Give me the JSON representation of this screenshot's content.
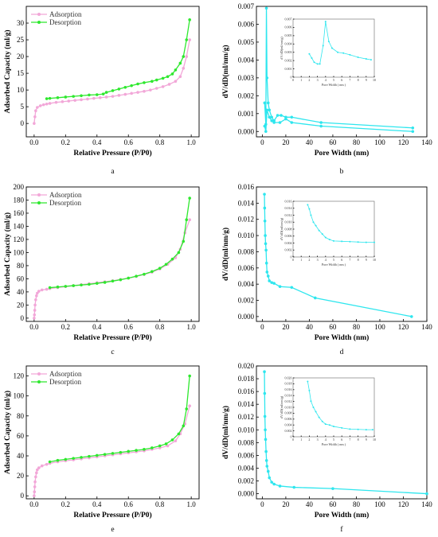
{
  "colors": {
    "adsorption": "#f2a7d8",
    "desorption": "#2ee82e",
    "pore": "#2ee6ee"
  },
  "chart_data": [
    {
      "id": "a",
      "type": "line",
      "panel_label": "a",
      "xlabel": "Relative Pressure (P/P0)",
      "ylabel": "Adsorbed Capacity (ml/g)",
      "xlim": [
        -0.05,
        1.05
      ],
      "ylim": [
        -4,
        35
      ],
      "xticks": [
        0.0,
        0.2,
        0.4,
        0.6,
        0.8,
        1.0
      ],
      "xtick_labels": [
        "0.0",
        "0.2",
        "0.4",
        "0.6",
        "0.8",
        "1.0"
      ],
      "yticks": [
        0,
        5,
        10,
        15,
        20,
        25,
        30
      ],
      "ytick_labels": [
        "0",
        "5",
        "10",
        "15",
        "20",
        "25",
        "30"
      ],
      "legend": "top-left",
      "series": [
        {
          "name": "Adsorption",
          "color_key": "adsorption",
          "x": [
            0.0,
            0.005,
            0.01,
            0.02,
            0.04,
            0.06,
            0.08,
            0.1,
            0.14,
            0.18,
            0.22,
            0.26,
            0.3,
            0.34,
            0.38,
            0.42,
            0.46,
            0.5,
            0.54,
            0.58,
            0.62,
            0.66,
            0.7,
            0.74,
            0.78,
            0.82,
            0.86,
            0.9,
            0.93,
            0.95,
            0.97,
            0.99
          ],
          "y": [
            0.0,
            2.0,
            3.8,
            4.8,
            5.3,
            5.6,
            5.8,
            6.0,
            6.3,
            6.5,
            6.7,
            6.9,
            7.1,
            7.3,
            7.5,
            7.7,
            7.9,
            8.1,
            8.4,
            8.7,
            9.0,
            9.3,
            9.6,
            10.0,
            10.5,
            11.0,
            11.7,
            12.6,
            14.0,
            16.5,
            20.0,
            25.0
          ]
        },
        {
          "name": "Desorption",
          "color_key": "desorption",
          "x": [
            0.99,
            0.97,
            0.95,
            0.93,
            0.9,
            0.88,
            0.85,
            0.82,
            0.78,
            0.75,
            0.7,
            0.66,
            0.62,
            0.58,
            0.54,
            0.5,
            0.46,
            0.44,
            0.4,
            0.35,
            0.3,
            0.25,
            0.2,
            0.15,
            0.1,
            0.08
          ],
          "y": [
            31.0,
            25.0,
            20.0,
            18.0,
            16.0,
            14.8,
            14.0,
            13.5,
            13.0,
            12.6,
            12.2,
            11.8,
            11.3,
            10.8,
            10.3,
            9.8,
            9.3,
            8.8,
            8.6,
            8.5,
            8.3,
            8.1,
            7.9,
            7.7,
            7.5,
            7.4
          ]
        }
      ]
    },
    {
      "id": "b",
      "type": "line",
      "panel_label": "b",
      "xlabel": "Pore Width (nm)",
      "ylabel": "dV/dD(ml/nm/g)",
      "xlim": [
        -5,
        140
      ],
      "ylim": [
        -0.0003,
        0.007
      ],
      "xticks": [
        0,
        20,
        40,
        60,
        80,
        100,
        120,
        140
      ],
      "xtick_labels": [
        "0",
        "20",
        "40",
        "60",
        "80",
        "100",
        "120",
        "140"
      ],
      "yticks": [
        0,
        0.001,
        0.002,
        0.003,
        0.004,
        0.005,
        0.006,
        0.007
      ],
      "ytick_labels": [
        "0.000",
        "0.001",
        "0.002",
        "0.003",
        "0.004",
        "0.005",
        "0.006",
        "0.007"
      ],
      "series": [
        {
          "name": "",
          "color_key": "pore",
          "x": [
            2,
            3,
            3.5,
            4,
            5,
            6,
            8,
            10,
            13,
            16,
            20,
            25,
            50,
            128
          ],
          "y": [
            0.0016,
            0.0004,
            0.0069,
            0.003,
            0.0016,
            0.0012,
            0.0008,
            0.0006,
            0.0009,
            0.0009,
            0.0008,
            0.0008,
            0.0005,
            0.0002
          ]
        },
        {
          "name": "",
          "color_key": "pore",
          "x": [
            2,
            3,
            4,
            6,
            8,
            10,
            15,
            20,
            25,
            50,
            128
          ],
          "y": [
            0.0003,
            0.0,
            0.0012,
            0.0008,
            0.0006,
            0.0005,
            0.0005,
            0.0007,
            0.0005,
            0.0003,
            0.0
          ]
        }
      ],
      "inset": {
        "xlabel": "Pore Width ( nm )",
        "ylabel": "dV/dD(ml/nm/g)",
        "xlim": [
          0,
          10
        ],
        "ylim": [
          0,
          0.007
        ],
        "xticks": [
          0,
          1,
          2,
          3,
          4,
          5,
          6,
          7,
          8,
          9,
          10
        ],
        "xtick_labels": [
          "0",
          "1",
          "2",
          "3",
          "4",
          "5",
          "6",
          "7",
          "8",
          "9",
          "10"
        ],
        "yticks": [
          0,
          0.001,
          0.002,
          0.003,
          0.004,
          0.005,
          0.006,
          0.007
        ],
        "ytick_labels": [
          "0",
          "0.001",
          "0.002",
          "0.003",
          "0.004",
          "0.005",
          "0.006",
          "0.007"
        ],
        "series": [
          {
            "color_key": "pore",
            "x": [
              2.0,
              2.3,
              2.6,
              3.0,
              3.3,
              3.7,
              4.0,
              4.4,
              4.8,
              5.5,
              6.2,
              7.0,
              8.0,
              9.0,
              9.6
            ],
            "y": [
              0.0028,
              0.0023,
              0.0018,
              0.0016,
              0.0016,
              0.0038,
              0.0067,
              0.0043,
              0.0035,
              0.003,
              0.0029,
              0.0027,
              0.0024,
              0.0022,
              0.0021
            ]
          }
        ]
      }
    },
    {
      "id": "c",
      "type": "line",
      "panel_label": "c",
      "xlabel": "Relative Pressure (P/P0)",
      "ylabel": "Adsorbed Capacity (ml/g)",
      "xlim": [
        -0.05,
        1.05
      ],
      "ylim": [
        -5,
        200
      ],
      "xticks": [
        0.0,
        0.2,
        0.4,
        0.6,
        0.8,
        1.0
      ],
      "xtick_labels": [
        "0.0",
        "0.2",
        "0.4",
        "0.6",
        "0.8",
        "1.0"
      ],
      "yticks": [
        0,
        20,
        40,
        60,
        80,
        100,
        120,
        140,
        160,
        180,
        200
      ],
      "ytick_labels": [
        "0",
        "20",
        "40",
        "60",
        "80",
        "100",
        "120",
        "140",
        "160",
        "180",
        "200"
      ],
      "legend": "top-left",
      "series": [
        {
          "name": "Adsorption",
          "color_key": "adsorption",
          "x": [
            0.0,
            0.002,
            0.004,
            0.006,
            0.01,
            0.015,
            0.02,
            0.03,
            0.05,
            0.08,
            0.1,
            0.15,
            0.2,
            0.25,
            0.3,
            0.35,
            0.4,
            0.45,
            0.5,
            0.55,
            0.6,
            0.65,
            0.7,
            0.75,
            0.8,
            0.85,
            0.9,
            0.93,
            0.96,
            0.99
          ],
          "y": [
            0,
            5,
            12,
            20,
            28,
            34,
            38,
            41,
            43,
            44,
            45,
            46.5,
            48,
            49.5,
            51,
            52.5,
            54,
            55.5,
            57,
            59,
            61,
            63.5,
            66.5,
            70,
            75,
            82,
            92,
            105,
            130,
            150
          ]
        },
        {
          "name": "Desorption",
          "color_key": "desorption",
          "x": [
            0.99,
            0.97,
            0.95,
            0.92,
            0.88,
            0.84,
            0.8,
            0.75,
            0.7,
            0.65,
            0.6,
            0.55,
            0.5,
            0.45,
            0.4,
            0.35,
            0.3,
            0.25,
            0.2,
            0.15,
            0.1
          ],
          "y": [
            183,
            150,
            117,
            100,
            90,
            82,
            76,
            71,
            67,
            64,
            61,
            58.5,
            56.5,
            54.5,
            53,
            51.5,
            50.5,
            49.5,
            48.5,
            47.5,
            46.5
          ]
        }
      ]
    },
    {
      "id": "d",
      "type": "line",
      "panel_label": "d",
      "xlabel": "Pore Width (nm)",
      "ylabel": "dV/dD(ml/nm/g)",
      "xlim": [
        -5,
        140
      ],
      "ylim": [
        -0.0006,
        0.016
      ],
      "xticks": [
        0,
        20,
        40,
        60,
        80,
        100,
        120,
        140
      ],
      "xtick_labels": [
        "0",
        "20",
        "40",
        "60",
        "80",
        "100",
        "120",
        "140"
      ],
      "yticks": [
        0,
        0.002,
        0.004,
        0.006,
        0.008,
        0.01,
        0.012,
        0.014,
        0.016
      ],
      "ytick_labels": [
        "0.000",
        "0.002",
        "0.004",
        "0.006",
        "0.008",
        "0.010",
        "0.012",
        "0.014",
        "0.016"
      ],
      "series": [
        {
          "name": "",
          "color_key": "pore",
          "x": [
            1.8,
            2.0,
            2.2,
            2.5,
            2.8,
            3.2,
            3.6,
            4.0,
            5.0,
            6.0,
            8.0,
            10,
            15,
            25,
            45,
            127
          ],
          "y": [
            0.0151,
            0.0134,
            0.0118,
            0.01,
            0.009,
            0.0082,
            0.0066,
            0.0055,
            0.005,
            0.0044,
            0.0042,
            0.0041,
            0.0037,
            0.0036,
            0.0023,
            0.0
          ]
        }
      ],
      "inset": {
        "xlabel": "Pore Width ( nm )",
        "ylabel": "dV/dD(ml/nm/g)",
        "xlim": [
          0,
          10
        ],
        "ylim": [
          0,
          0.016
        ],
        "xticks": [
          0,
          1,
          2,
          3,
          4,
          5,
          6,
          7,
          8,
          9,
          10
        ],
        "xtick_labels": [
          "0",
          "1",
          "2",
          "3",
          "4",
          "5",
          "6",
          "7",
          "8",
          "9",
          "10"
        ],
        "yticks": [
          0,
          0.002,
          0.004,
          0.006,
          0.008,
          0.01,
          0.012,
          0.014,
          0.016
        ],
        "ytick_labels": [
          "0",
          "0.002",
          "0.004",
          "0.006",
          "0.008",
          "0.010",
          "0.012",
          "0.014",
          "0.016"
        ],
        "series": [
          {
            "color_key": "pore",
            "x": [
              1.8,
              2.0,
              2.2,
              2.5,
              2.8,
              3.2,
              3.6,
              4.0,
              4.5,
              5.0,
              6.0,
              7.0,
              8.0,
              9.0,
              10.0
            ],
            "y": [
              0.015,
              0.0138,
              0.012,
              0.01,
              0.009,
              0.0076,
              0.0066,
              0.0056,
              0.005,
              0.0046,
              0.0045,
              0.0044,
              0.0043,
              0.0042,
              0.0042
            ]
          }
        ]
      }
    },
    {
      "id": "e",
      "type": "line",
      "panel_label": "e",
      "xlabel": "Relative Pressure (P/P0)",
      "ylabel": "Adsorbed Capacity (ml/g)",
      "xlim": [
        -0.05,
        1.05
      ],
      "ylim": [
        -3,
        130
      ],
      "xticks": [
        0.0,
        0.2,
        0.4,
        0.6,
        0.8,
        1.0
      ],
      "xtick_labels": [
        "0.0",
        "0.2",
        "0.4",
        "0.6",
        "0.8",
        "1.0"
      ],
      "yticks": [
        0,
        20,
        40,
        60,
        80,
        100,
        120
      ],
      "ytick_labels": [
        "0",
        "20",
        "40",
        "60",
        "80",
        "100",
        "120"
      ],
      "legend": "top-left",
      "series": [
        {
          "name": "Adsorption",
          "color_key": "adsorption",
          "x": [
            0.0,
            0.002,
            0.004,
            0.006,
            0.01,
            0.015,
            0.02,
            0.03,
            0.05,
            0.08,
            0.1,
            0.15,
            0.2,
            0.25,
            0.3,
            0.35,
            0.4,
            0.45,
            0.5,
            0.55,
            0.6,
            0.65,
            0.7,
            0.75,
            0.8,
            0.85,
            0.9,
            0.93,
            0.96,
            0.99
          ],
          "y": [
            0,
            4,
            9,
            14,
            19,
            23,
            26,
            28,
            30,
            31.5,
            32.5,
            34,
            35,
            36,
            37,
            38,
            39,
            40,
            41,
            42,
            43,
            44,
            45,
            46.5,
            48,
            50,
            55,
            62,
            72,
            90
          ]
        },
        {
          "name": "Desorption",
          "color_key": "desorption",
          "x": [
            0.99,
            0.97,
            0.95,
            0.92,
            0.88,
            0.84,
            0.8,
            0.75,
            0.7,
            0.65,
            0.6,
            0.55,
            0.5,
            0.45,
            0.4,
            0.35,
            0.3,
            0.25,
            0.2,
            0.15,
            0.1
          ],
          "y": [
            120,
            87,
            70,
            62,
            56,
            52,
            50,
            48,
            46.5,
            45.5,
            44.5,
            43.5,
            42.5,
            41.5,
            40.5,
            39.5,
            38.5,
            37.5,
            36.5,
            35.5,
            34
          ]
        }
      ]
    },
    {
      "id": "f",
      "type": "line",
      "panel_label": "f",
      "xlabel": "Pore Width (nm)",
      "ylabel": "dV/dD(ml/nm/g)",
      "xlim": [
        -5,
        140
      ],
      "ylim": [
        -0.0008,
        0.02
      ],
      "xticks": [
        0,
        20,
        40,
        60,
        80,
        100,
        120,
        140
      ],
      "xtick_labels": [
        "0",
        "20",
        "40",
        "60",
        "80",
        "100",
        "120",
        "140"
      ],
      "yticks": [
        0,
        0.002,
        0.004,
        0.006,
        0.008,
        0.01,
        0.012,
        0.014,
        0.016,
        0.018,
        0.02
      ],
      "ytick_labels": [
        "0.000",
        "0.002",
        "0.004",
        "0.006",
        "0.008",
        "0.010",
        "0.012",
        "0.014",
        "0.016",
        "0.018",
        "0.020"
      ],
      "series": [
        {
          "name": "",
          "color_key": "pore",
          "x": [
            1.8,
            2.0,
            2.2,
            2.5,
            2.8,
            3.2,
            3.6,
            4.0,
            5.0,
            6.0,
            8.0,
            10,
            15,
            27,
            60,
            140
          ],
          "y": [
            0.0191,
            0.0157,
            0.0121,
            0.01,
            0.0085,
            0.0066,
            0.0052,
            0.0043,
            0.0035,
            0.0025,
            0.0018,
            0.0015,
            0.0012,
            0.001,
            0.0008,
            0.0
          ]
        }
      ],
      "inset": {
        "xlabel": "Pore Width ( nm )",
        "ylabel": "dV/dD(ml/nm/g)",
        "xlim": [
          0,
          10
        ],
        "ylim": [
          0,
          0.02
        ],
        "xticks": [
          0,
          1,
          2,
          3,
          4,
          5,
          6,
          7,
          8,
          9,
          10
        ],
        "xtick_labels": [
          "0",
          "1",
          "2",
          "3",
          "4",
          "5",
          "6",
          "7",
          "8",
          "9",
          "10"
        ],
        "yticks": [
          0,
          0.002,
          0.004,
          0.006,
          0.008,
          0.01,
          0.012,
          0.014,
          0.016,
          0.018,
          0.02
        ],
        "ytick_labels": [
          "0",
          "0.002",
          "0.004",
          "0.006",
          "0.008",
          "0.010",
          "0.012",
          "0.014",
          "0.016",
          "0.018",
          "0.020"
        ],
        "series": [
          {
            "color_key": "pore",
            "x": [
              1.8,
              2.0,
              2.2,
              2.5,
              2.8,
              3.2,
              3.6,
              4.0,
              4.5,
              5.0,
              6.0,
              7.0,
              8.0,
              9.0,
              9.8
            ],
            "y": [
              0.0188,
              0.0157,
              0.0121,
              0.01,
              0.0085,
              0.0066,
              0.0052,
              0.0043,
              0.004,
              0.0035,
              0.003,
              0.0026,
              0.0025,
              0.0024,
              0.0024
            ]
          }
        ]
      }
    }
  ]
}
